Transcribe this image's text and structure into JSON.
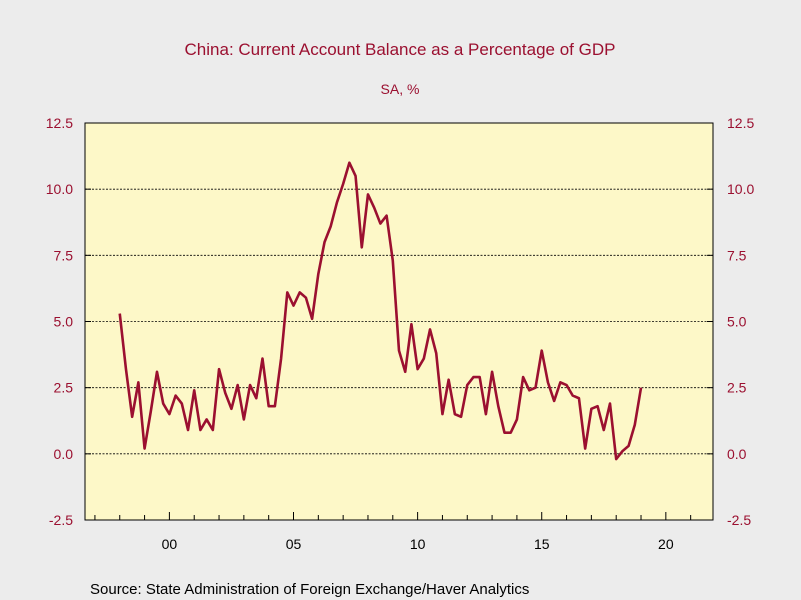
{
  "chart_data": {
    "type": "line",
    "title": "China: Current Account Balance as a Percentage of GDP",
    "subtitle": "SA, %",
    "source": "Source:  State Administration of Foreign Exchange/Haver Analytics",
    "xlim": [
      1996.6,
      2021.9
    ],
    "ylim": [
      -2.5,
      12.5
    ],
    "y_ticks": [
      -2.5,
      0.0,
      2.5,
      5.0,
      7.5,
      10.0,
      12.5
    ],
    "y_tick_labels": [
      "-2.5",
      "0.0",
      "2.5",
      "5.0",
      "7.5",
      "10.0",
      "12.5"
    ],
    "x_ticks": [
      2000,
      2005,
      2010,
      2015,
      2020
    ],
    "x_tick_labels": [
      "00",
      "05",
      "10",
      "15",
      "20"
    ],
    "grid_lines_y": [
      0.0,
      2.5,
      5.0,
      7.5,
      10.0
    ],
    "colors": {
      "line": "#9b1030",
      "plot_background": "#fdf8c8",
      "page_background": "#ececec"
    },
    "series": [
      {
        "x": [
          1998.0,
          1998.25,
          1998.5,
          1998.75,
          1999.0,
          1999.25,
          1999.5,
          1999.75,
          2000.0,
          2000.25,
          2000.5,
          2000.75,
          2001.0,
          2001.25,
          2001.5,
          2001.75,
          2002.0,
          2002.25,
          2002.5,
          2002.75,
          2003.0,
          2003.25,
          2003.5,
          2003.75,
          2004.0,
          2004.25,
          2004.5,
          2004.75,
          2005.0,
          2005.25,
          2005.5,
          2005.75,
          2006.0,
          2006.25,
          2006.5,
          2006.75,
          2007.0,
          2007.25,
          2007.5,
          2007.75,
          2008.0,
          2008.25,
          2008.5,
          2008.75,
          2009.0,
          2009.25,
          2009.5,
          2009.75,
          2010.0,
          2010.25,
          2010.5,
          2010.75,
          2011.0,
          2011.25,
          2011.5,
          2011.75,
          2012.0,
          2012.25,
          2012.5,
          2012.75,
          2013.0,
          2013.25,
          2013.5,
          2013.75,
          2014.0,
          2014.25,
          2014.5,
          2014.75,
          2015.0,
          2015.25,
          2015.5,
          2015.75,
          2016.0,
          2016.25,
          2016.5,
          2016.75,
          2017.0,
          2017.25,
          2017.5,
          2017.75,
          2018.0,
          2018.25,
          2018.5,
          2018.75,
          2019.0
        ],
        "y": [
          5.3,
          3.2,
          1.4,
          2.7,
          0.2,
          1.6,
          3.1,
          1.9,
          1.5,
          2.2,
          1.9,
          0.9,
          2.4,
          0.9,
          1.3,
          0.9,
          3.2,
          2.3,
          1.7,
          2.6,
          1.3,
          2.6,
          2.1,
          3.6,
          1.8,
          1.8,
          3.6,
          6.1,
          5.6,
          6.1,
          5.9,
          5.1,
          6.8,
          8.0,
          8.6,
          9.5,
          10.2,
          11.0,
          10.5,
          7.8,
          9.8,
          9.3,
          8.7,
          9.0,
          7.3,
          3.9,
          3.1,
          4.9,
          3.2,
          3.6,
          4.7,
          3.8,
          1.5,
          2.8,
          1.5,
          1.4,
          2.6,
          2.9,
          2.9,
          1.5,
          3.1,
          1.8,
          0.8,
          0.8,
          1.3,
          2.9,
          2.4,
          2.5,
          3.9,
          2.7,
          2.0,
          2.7,
          2.6,
          2.2,
          2.1,
          0.2,
          1.7,
          1.8,
          0.9,
          1.9,
          -0.2,
          0.1,
          0.3,
          1.1,
          2.5
        ]
      }
    ]
  }
}
